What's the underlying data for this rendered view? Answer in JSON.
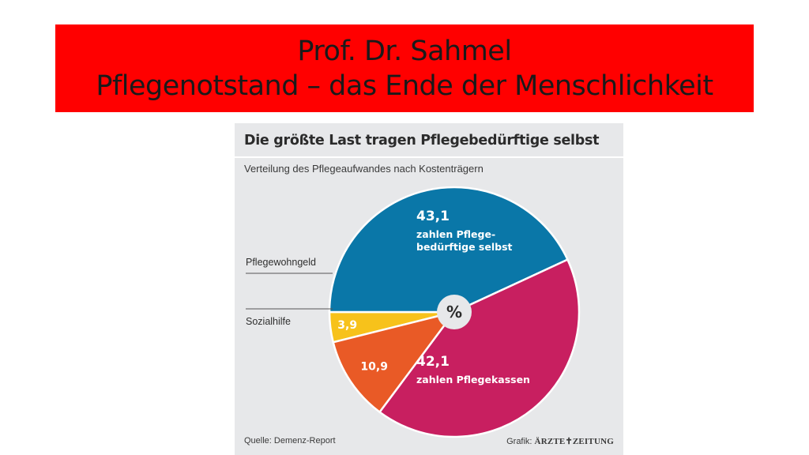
{
  "slide": {
    "title_line1": "Prof. Dr. Sahmel",
    "title_line2": "Pflegenotstand – das Ende der Menschlichkeit",
    "banner_color": "#ff0000"
  },
  "graphic": {
    "source": "Quelle: Demenz-Report",
    "credit_prefix": "Grafik: ",
    "credit_brand": "ÄRZTE✝ZEITUNG"
  },
  "chart_data": {
    "type": "pie",
    "title": "Die größte Last tragen Pflegebedürftige selbst",
    "subtitle": "Verteilung des Pflegeaufwandes nach Kostenträgern",
    "center_label": "%",
    "slices": [
      {
        "label": "Pflegewohngeld",
        "value": 3.9,
        "display": "3,9",
        "color": "#f7c21b"
      },
      {
        "label": "zahlen Pflege-\nbedürftige selbst",
        "value": 43.1,
        "display": "43,1",
        "color": "#0a77a8"
      },
      {
        "label": "zahlen Pflegekassen",
        "value": 42.1,
        "display": "42,1",
        "color": "#c81f60"
      },
      {
        "label": "Sozialhilfe",
        "value": 10.9,
        "display": "10,9",
        "color": "#e95a26"
      }
    ]
  }
}
